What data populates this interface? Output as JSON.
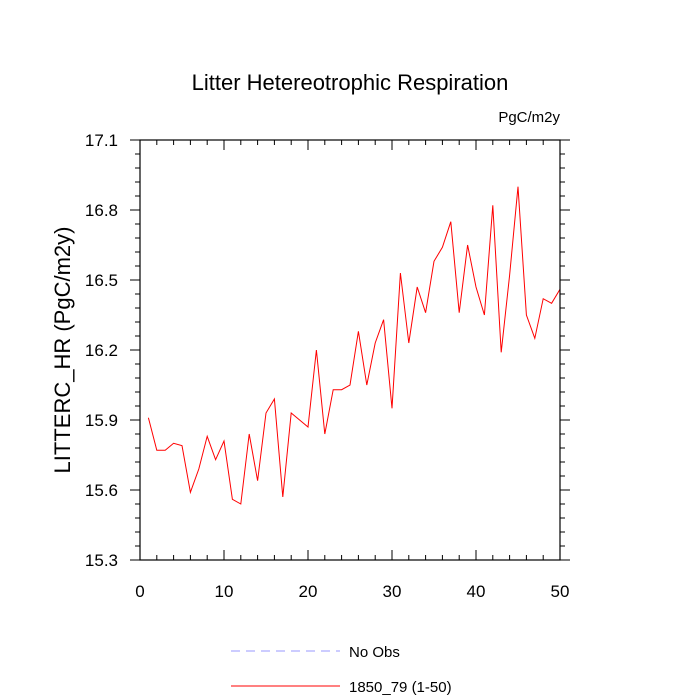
{
  "chart_data": {
    "type": "line",
    "title": "Litter Hetereotrophic Respiration",
    "units": "PgC/m2y",
    "xlabel": "",
    "ylabel": "LITTERC_HR  (PgC/m2y)",
    "xlim": [
      0,
      50
    ],
    "ylim": [
      15.3,
      17.1
    ],
    "xticks": [
      0,
      10,
      20,
      30,
      40,
      50
    ],
    "yticks": [
      15.3,
      15.6,
      15.9,
      16.2,
      16.5,
      16.8,
      17.1
    ],
    "ytick_labels": [
      "15.3",
      "15.6",
      "15.9",
      "16.2",
      "16.5",
      "16.8",
      "17.1"
    ],
    "series": [
      {
        "name": "1850_79 (1-50)",
        "color": "#ff0000",
        "style": "solid",
        "x": [
          1,
          2,
          3,
          4,
          5,
          6,
          7,
          8,
          9,
          10,
          11,
          12,
          13,
          14,
          15,
          16,
          17,
          18,
          19,
          20,
          21,
          22,
          23,
          24,
          25,
          26,
          27,
          28,
          29,
          30,
          31,
          32,
          33,
          34,
          35,
          36,
          37,
          38,
          39,
          40,
          41,
          42,
          43,
          44,
          45,
          46,
          47,
          48,
          49,
          50
        ],
        "y": [
          15.91,
          15.77,
          15.77,
          15.8,
          15.79,
          15.59,
          15.69,
          15.83,
          15.73,
          15.81,
          15.56,
          15.54,
          15.84,
          15.64,
          15.93,
          15.99,
          15.57,
          15.93,
          15.9,
          15.87,
          16.2,
          15.84,
          16.03,
          16.03,
          16.05,
          16.28,
          16.05,
          16.23,
          16.33,
          15.95,
          16.53,
          16.23,
          16.47,
          16.36,
          16.58,
          16.64,
          16.75,
          16.36,
          16.65,
          16.47,
          16.35,
          16.82,
          16.19,
          16.52,
          16.9,
          16.35,
          16.25,
          16.42,
          16.4,
          16.46
        ]
      }
    ],
    "legend": [
      {
        "label": "No Obs",
        "color": "#9a9aff",
        "style": "dashed"
      },
      {
        "label": "1850_79 (1-50)",
        "color": "#ff0000",
        "style": "solid"
      }
    ]
  }
}
